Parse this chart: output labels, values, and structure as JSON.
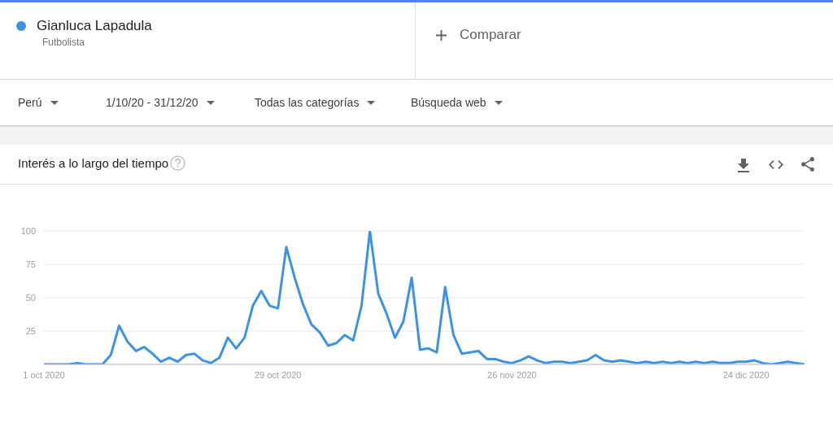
{
  "chart_data": {
    "type": "line",
    "title": "Interés a lo largo del tiempo",
    "annotations": [
      "Futbolista",
      "Comparar",
      "Perú",
      "1/10/20 - 31/12/20",
      "Todas las categorías",
      "Búsqueda web"
    ],
    "x": [
      "2020-10-01",
      "2020-10-02",
      "2020-10-03",
      "2020-10-04",
      "2020-10-05",
      "2020-10-06",
      "2020-10-07",
      "2020-10-08",
      "2020-10-09",
      "2020-10-10",
      "2020-10-11",
      "2020-10-12",
      "2020-10-13",
      "2020-10-14",
      "2020-10-15",
      "2020-10-16",
      "2020-10-17",
      "2020-10-18",
      "2020-10-19",
      "2020-10-20",
      "2020-10-21",
      "2020-10-22",
      "2020-10-23",
      "2020-10-24",
      "2020-10-25",
      "2020-10-26",
      "2020-10-27",
      "2020-10-28",
      "2020-10-29",
      "2020-10-30",
      "2020-10-31",
      "2020-11-01",
      "2020-11-02",
      "2020-11-03",
      "2020-11-04",
      "2020-11-05",
      "2020-11-06",
      "2020-11-07",
      "2020-11-08",
      "2020-11-09",
      "2020-11-10",
      "2020-11-11",
      "2020-11-12",
      "2020-11-13",
      "2020-11-14",
      "2020-11-15",
      "2020-11-16",
      "2020-11-17",
      "2020-11-18",
      "2020-11-19",
      "2020-11-20",
      "2020-11-21",
      "2020-11-22",
      "2020-11-23",
      "2020-11-24",
      "2020-11-25",
      "2020-11-26",
      "2020-11-27",
      "2020-11-28",
      "2020-11-29",
      "2020-11-30",
      "2020-12-01",
      "2020-12-02",
      "2020-12-03",
      "2020-12-04",
      "2020-12-05",
      "2020-12-06",
      "2020-12-07",
      "2020-12-08",
      "2020-12-09",
      "2020-12-10",
      "2020-12-11",
      "2020-12-12",
      "2020-12-13",
      "2020-12-14",
      "2020-12-15",
      "2020-12-16",
      "2020-12-17",
      "2020-12-18",
      "2020-12-19",
      "2020-12-20",
      "2020-12-21",
      "2020-12-22",
      "2020-12-23",
      "2020-12-24",
      "2020-12-25",
      "2020-12-26",
      "2020-12-27",
      "2020-12-28",
      "2020-12-29",
      "2020-12-30",
      "2020-12-31"
    ],
    "series": [
      {
        "name": "Gianluca Lapadula",
        "color": "#3d93e3",
        "values": [
          0,
          0,
          0,
          0,
          1,
          0,
          0,
          0,
          7,
          29,
          17,
          10,
          13,
          8,
          2,
          5,
          2,
          7,
          8,
          3,
          1,
          5,
          20,
          12,
          20,
          44,
          55,
          44,
          42,
          88,
          65,
          45,
          30,
          24,
          14,
          16,
          22,
          18,
          44,
          100,
          53,
          38,
          20,
          32,
          65,
          11,
          12,
          9,
          58,
          22,
          8,
          9,
          10,
          4,
          4,
          2,
          1,
          3,
          6,
          3,
          1,
          2,
          2,
          1,
          2,
          3,
          7,
          3,
          2,
          3,
          2,
          1,
          2,
          1,
          2,
          1,
          2,
          1,
          2,
          1,
          2,
          1,
          1,
          2,
          2,
          3,
          1,
          0,
          1,
          2,
          1,
          0
        ]
      }
    ],
    "xlim": [
      "2020-10-01",
      "2020-12-31"
    ],
    "xticks": [
      {
        "value": "2020-10-01",
        "label": "1 oct 2020"
      },
      {
        "value": "2020-10-29",
        "label": "29 oct 2020"
      },
      {
        "value": "2020-11-26",
        "label": "26 nov 2020"
      },
      {
        "value": "2020-12-24",
        "label": "24 dic 2020"
      }
    ],
    "ylim": [
      0,
      100
    ],
    "yticks": [
      {
        "value": 0,
        "label": null
      },
      25,
      50,
      75,
      100
    ],
    "grid": "y",
    "legend": "top left"
  }
}
